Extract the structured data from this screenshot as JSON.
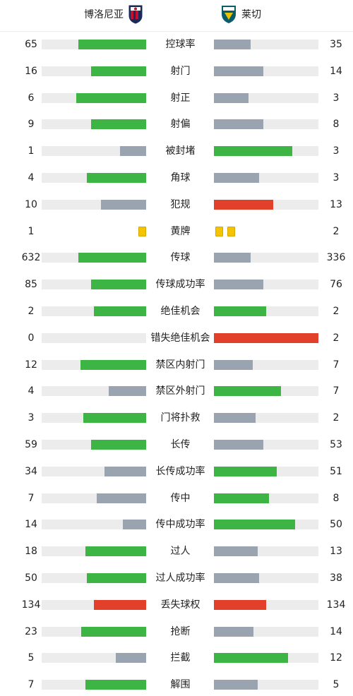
{
  "home_team": {
    "name": "博洛尼亚",
    "crest_icon": "bologna-crest-icon"
  },
  "away_team": {
    "name": "莱切",
    "crest_icon": "lecce-crest-icon"
  },
  "colors": {
    "green": "#3cb544",
    "gray": "#9aa3b0",
    "red": "#e2402a",
    "yellow": "#f5c400",
    "track": "#ececec"
  },
  "stats": [
    {
      "label": "控球率",
      "home": "65",
      "away": "35",
      "home_frac": 0.65,
      "away_frac": 0.35,
      "home_color": "green",
      "away_color": "gray"
    },
    {
      "label": "射门",
      "home": "16",
      "away": "14",
      "home_frac": 0.53,
      "away_frac": 0.47,
      "home_color": "green",
      "away_color": "gray"
    },
    {
      "label": "射正",
      "home": "6",
      "away": "3",
      "home_frac": 0.67,
      "away_frac": 0.33,
      "home_color": "green",
      "away_color": "gray"
    },
    {
      "label": "射偏",
      "home": "9",
      "away": "8",
      "home_frac": 0.53,
      "away_frac": 0.47,
      "home_color": "green",
      "away_color": "gray"
    },
    {
      "label": "被封堵",
      "home": "1",
      "away": "3",
      "home_frac": 0.25,
      "away_frac": 0.75,
      "home_color": "gray",
      "away_color": "green"
    },
    {
      "label": "角球",
      "home": "4",
      "away": "3",
      "home_frac": 0.57,
      "away_frac": 0.43,
      "home_color": "green",
      "away_color": "gray"
    },
    {
      "label": "犯规",
      "home": "10",
      "away": "13",
      "home_frac": 0.43,
      "away_frac": 0.57,
      "home_color": "gray",
      "away_color": "red"
    },
    {
      "label": "黄牌",
      "home": "1",
      "away": "2",
      "home_cards": 1,
      "away_cards": 2
    },
    {
      "label": "传球",
      "home": "632",
      "away": "336",
      "home_frac": 0.65,
      "away_frac": 0.35,
      "home_color": "green",
      "away_color": "gray"
    },
    {
      "label": "传球成功率",
      "home": "85",
      "away": "76",
      "home_frac": 0.53,
      "away_frac": 0.47,
      "home_color": "green",
      "away_color": "gray"
    },
    {
      "label": "绝佳机会",
      "home": "2",
      "away": "2",
      "home_frac": 0.5,
      "away_frac": 0.5,
      "home_color": "green",
      "away_color": "green"
    },
    {
      "label": "错失绝佳机会",
      "home": "0",
      "away": "2",
      "home_frac": 0.0,
      "away_frac": 1.0,
      "home_color": "gray",
      "away_color": "red"
    },
    {
      "label": "禁区内射门",
      "home": "12",
      "away": "7",
      "home_frac": 0.63,
      "away_frac": 0.37,
      "home_color": "green",
      "away_color": "gray"
    },
    {
      "label": "禁区外射门",
      "home": "4",
      "away": "7",
      "home_frac": 0.36,
      "away_frac": 0.64,
      "home_color": "gray",
      "away_color": "green"
    },
    {
      "label": "门将扑救",
      "home": "3",
      "away": "2",
      "home_frac": 0.6,
      "away_frac": 0.4,
      "home_color": "green",
      "away_color": "gray"
    },
    {
      "label": "长传",
      "home": "59",
      "away": "53",
      "home_frac": 0.53,
      "away_frac": 0.47,
      "home_color": "green",
      "away_color": "gray"
    },
    {
      "label": "长传成功率",
      "home": "34",
      "away": "51",
      "home_frac": 0.4,
      "away_frac": 0.6,
      "home_color": "gray",
      "away_color": "green"
    },
    {
      "label": "传中",
      "home": "7",
      "away": "8",
      "home_frac": 0.47,
      "away_frac": 0.53,
      "home_color": "gray",
      "away_color": "green"
    },
    {
      "label": "传中成功率",
      "home": "14",
      "away": "50",
      "home_frac": 0.22,
      "away_frac": 0.78,
      "home_color": "gray",
      "away_color": "green"
    },
    {
      "label": "过人",
      "home": "18",
      "away": "13",
      "home_frac": 0.58,
      "away_frac": 0.42,
      "home_color": "green",
      "away_color": "gray"
    },
    {
      "label": "过人成功率",
      "home": "50",
      "away": "38",
      "home_frac": 0.57,
      "away_frac": 0.43,
      "home_color": "green",
      "away_color": "gray"
    },
    {
      "label": "丢失球权",
      "home": "134",
      "away": "134",
      "home_frac": 0.5,
      "away_frac": 0.5,
      "home_color": "red",
      "away_color": "red"
    },
    {
      "label": "抢断",
      "home": "23",
      "away": "14",
      "home_frac": 0.62,
      "away_frac": 0.38,
      "home_color": "green",
      "away_color": "gray"
    },
    {
      "label": "拦截",
      "home": "5",
      "away": "12",
      "home_frac": 0.29,
      "away_frac": 0.71,
      "home_color": "gray",
      "away_color": "green"
    },
    {
      "label": "解围",
      "home": "7",
      "away": "5",
      "home_frac": 0.58,
      "away_frac": 0.42,
      "home_color": "green",
      "away_color": "gray"
    }
  ]
}
